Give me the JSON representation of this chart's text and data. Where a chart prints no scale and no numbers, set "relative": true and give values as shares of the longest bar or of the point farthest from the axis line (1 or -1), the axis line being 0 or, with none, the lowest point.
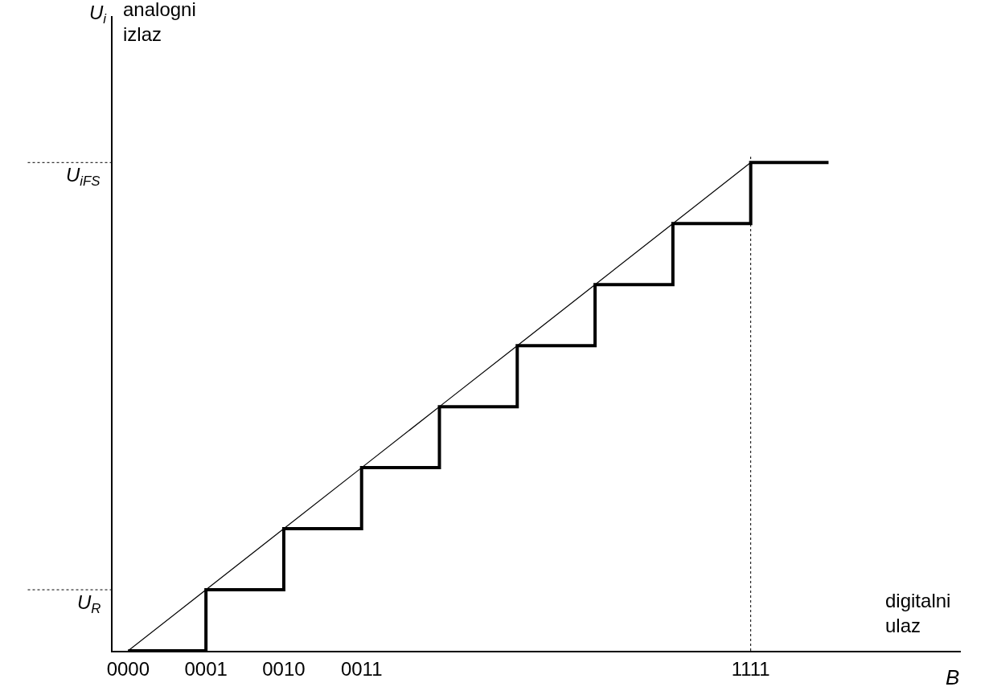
{
  "chart_data": {
    "type": "step",
    "relative": true,
    "xlabel": "B",
    "annotations": [
      "U$_{i}$",
      "analogni\nizlaz",
      "digitalni\nulaz"
    ],
    "categories": [
      "0000",
      "0001",
      "0010",
      "0011",
      null,
      null,
      null,
      null,
      "1111",
      null
    ],
    "series": [
      {
        "color": "#000000",
        "values": [
          0,
          0.125,
          0.25,
          0.375,
          0.5,
          0.625,
          0.75,
          0.875,
          1,
          1
        ]
      },
      {
        "type": "line",
        "color": "#000000",
        "values": [
          0,
          0.125,
          0.25,
          0.375,
          0.5,
          0.625,
          0.75,
          0.875,
          1,
          null
        ]
      }
    ],
    "ref_lines": [
      {
        "axis": "y",
        "value": 1,
        "label": "U$_{iFS}$",
        "line_style": "dotted",
        "color": "#000000"
      },
      {
        "axis": "y",
        "value": 0.125,
        "label": "U$_{R}$",
        "line_style": "dotted",
        "color": "#000000"
      },
      {
        "axis": "x",
        "value": "1111",
        "line_style": "dotted",
        "color": "#000000"
      }
    ]
  }
}
